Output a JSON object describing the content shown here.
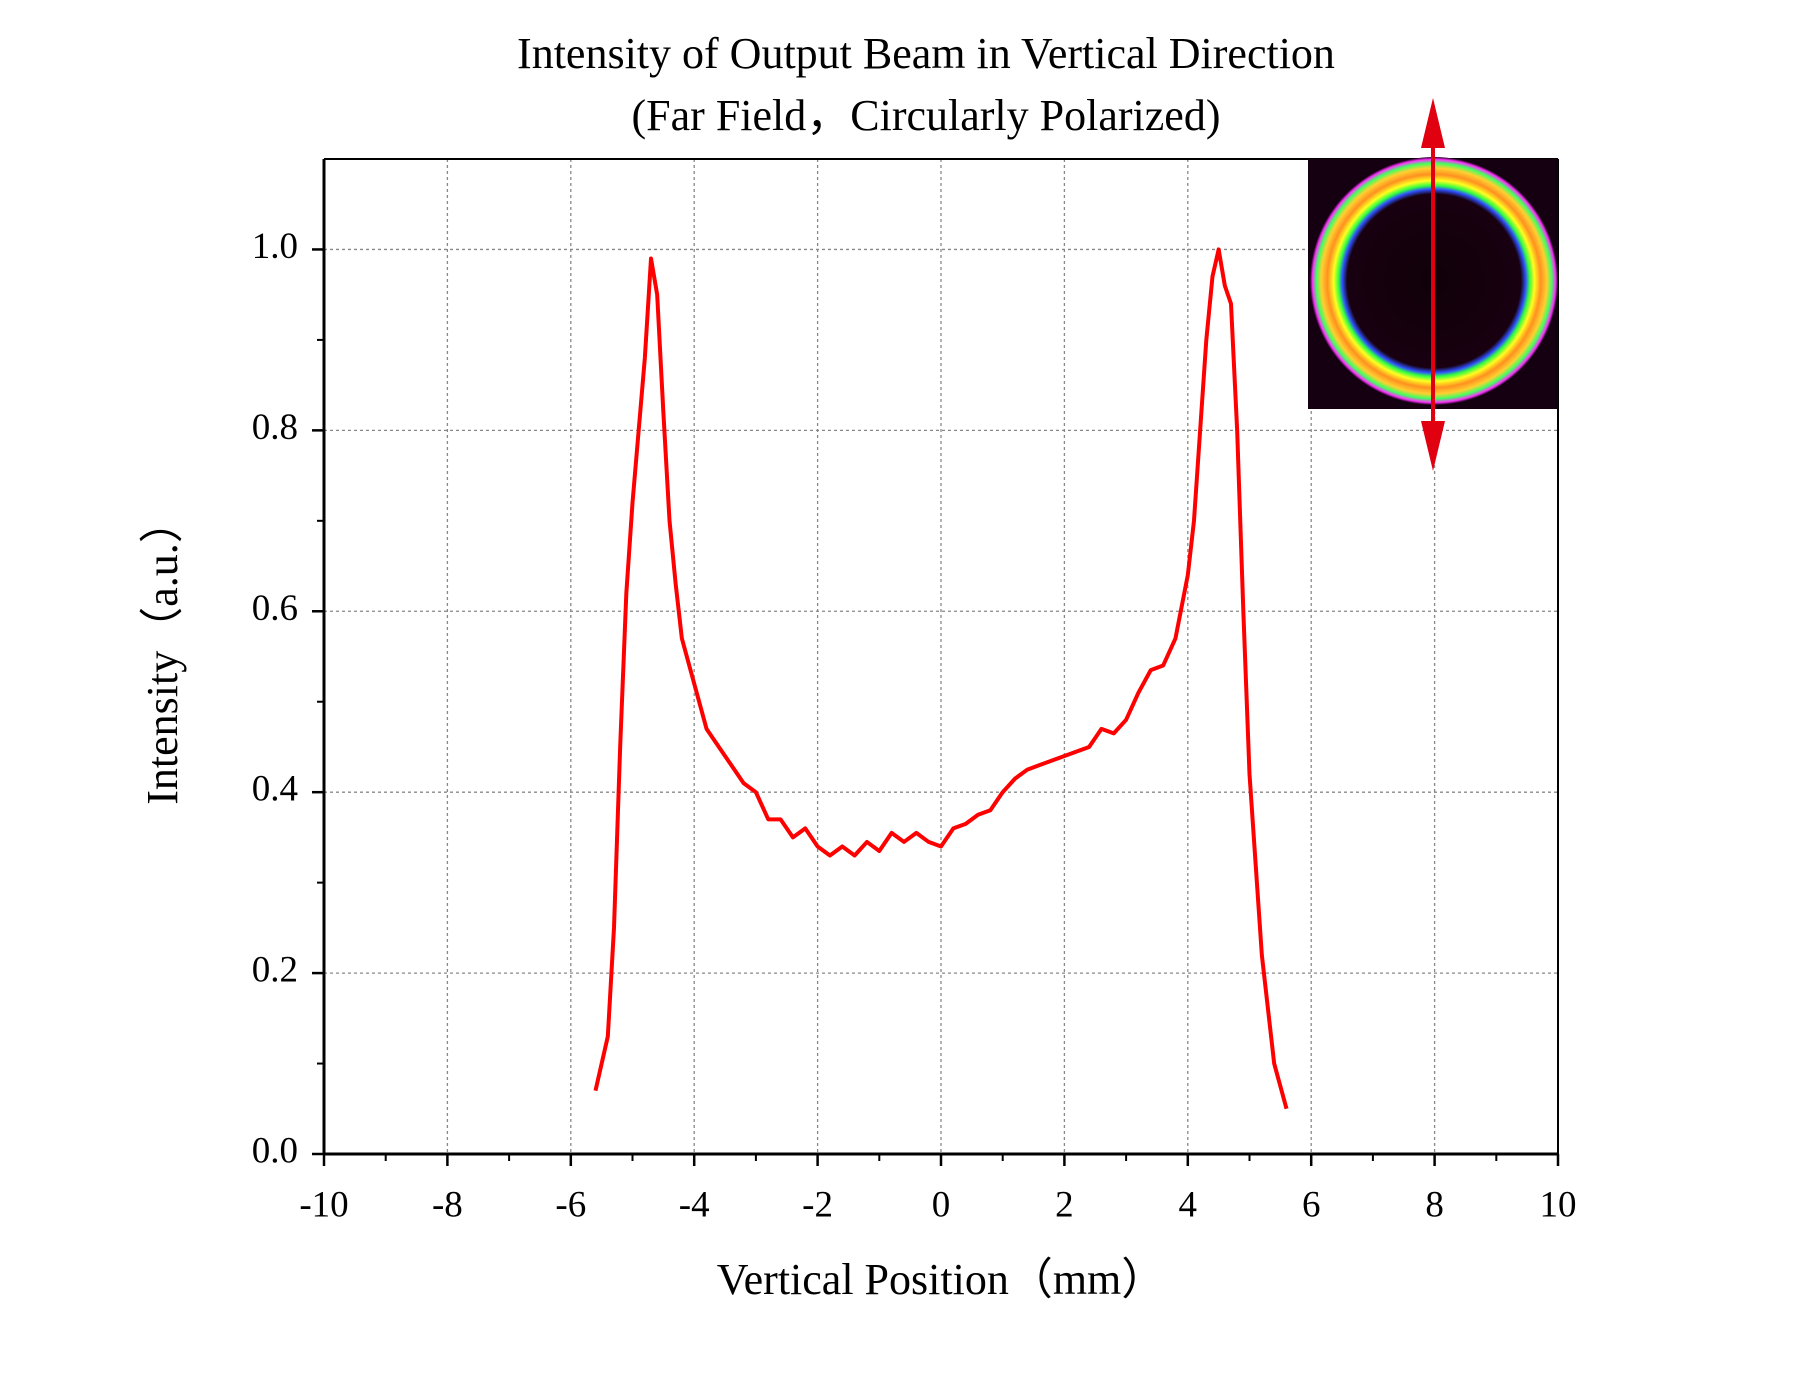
{
  "chart_data": {
    "type": "line",
    "title": "Intensity of Output Beam in Vertical Direction",
    "subtitle": "(Far Field，Circularly Polarized)",
    "x_label": "Vertical Position（mm）",
    "y_label": "Intensity（a.u.）",
    "x": [
      -5.6,
      -5.4,
      -5.3,
      -5.2,
      -5.1,
      -5.0,
      -4.9,
      -4.8,
      -4.7,
      -4.6,
      -4.5,
      -4.4,
      -4.3,
      -4.2,
      -4.0,
      -3.8,
      -3.6,
      -3.4,
      -3.2,
      -3.0,
      -2.8,
      -2.6,
      -2.4,
      -2.2,
      -2.0,
      -1.8,
      -1.6,
      -1.4,
      -1.2,
      -1.0,
      -0.8,
      -0.6,
      -0.4,
      -0.2,
      0.0,
      0.2,
      0.4,
      0.6,
      0.8,
      1.0,
      1.2,
      1.4,
      1.6,
      1.8,
      2.0,
      2.2,
      2.4,
      2.6,
      2.8,
      3.0,
      3.2,
      3.4,
      3.6,
      3.8,
      4.0,
      4.1,
      4.2,
      4.3,
      4.4,
      4.5,
      4.6,
      4.7,
      4.8,
      4.9,
      5.0,
      5.1,
      5.2,
      5.4,
      5.6
    ],
    "series": [
      {
        "color": "#ff0000",
        "values": [
          0.07,
          0.13,
          0.25,
          0.45,
          0.62,
          0.72,
          0.8,
          0.88,
          0.99,
          0.95,
          0.82,
          0.7,
          0.63,
          0.57,
          0.52,
          0.47,
          0.45,
          0.43,
          0.41,
          0.4,
          0.37,
          0.37,
          0.35,
          0.36,
          0.34,
          0.33,
          0.34,
          0.33,
          0.345,
          0.335,
          0.355,
          0.345,
          0.355,
          0.345,
          0.34,
          0.36,
          0.365,
          0.375,
          0.38,
          0.4,
          0.415,
          0.425,
          0.43,
          0.435,
          0.44,
          0.445,
          0.45,
          0.47,
          0.465,
          0.48,
          0.51,
          0.535,
          0.54,
          0.57,
          0.64,
          0.7,
          0.8,
          0.9,
          0.97,
          1.0,
          0.96,
          0.94,
          0.8,
          0.6,
          0.42,
          0.32,
          0.22,
          0.1,
          0.05
        ]
      }
    ],
    "xlim": [
      -10,
      10
    ],
    "xticks": [
      -10,
      -8,
      -6,
      -4,
      -2,
      0,
      2,
      4,
      6,
      8,
      10
    ],
    "ylim": [
      0,
      1.1
    ],
    "yticks": [
      {
        "value": 0,
        "label": "0.0"
      },
      {
        "value": 0.2,
        "label": "0.2"
      },
      {
        "value": 0.4,
        "label": "0.4"
      },
      {
        "value": 0.6,
        "label": "0.6"
      },
      {
        "value": 0.8,
        "label": "0.8"
      },
      {
        "value": 1,
        "label": "1.0"
      }
    ],
    "grid": true
  }
}
